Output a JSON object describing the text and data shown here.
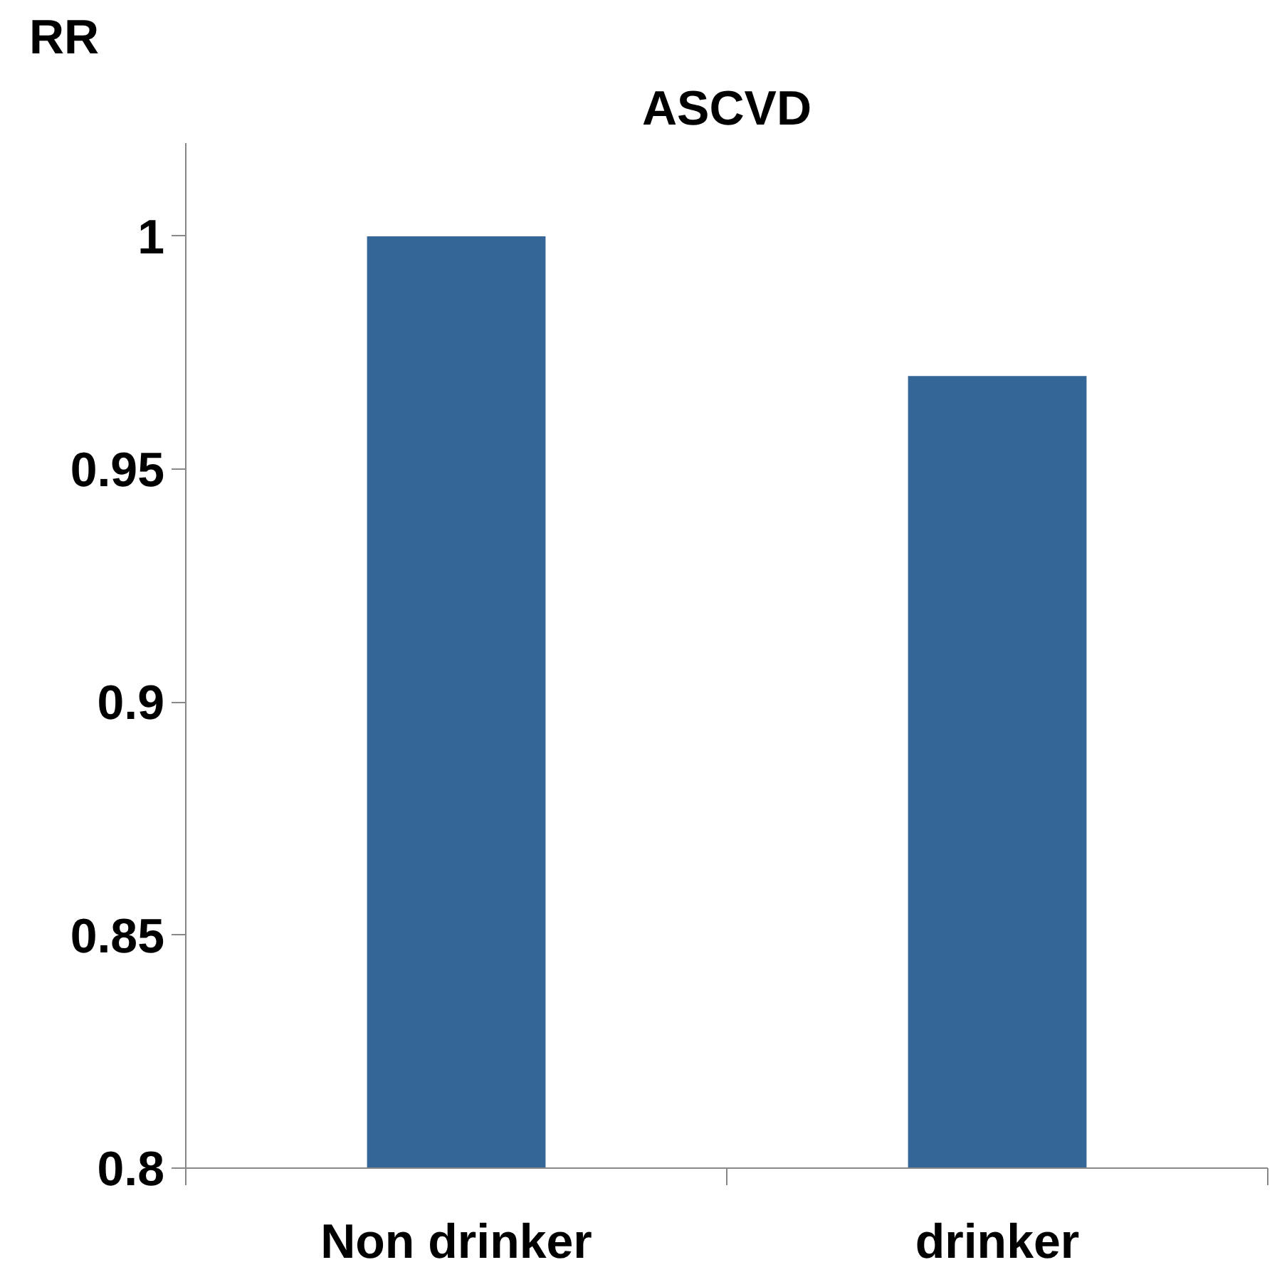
{
  "chart_data": {
    "type": "bar",
    "title": "ASCVD",
    "ylabel": "RR",
    "categories": [
      "Non drinker",
      "drinker"
    ],
    "values": [
      1,
      0.97
    ],
    "color": "#356698",
    "ylim": [
      0.8,
      1.02
    ],
    "yticks": [
      0.8,
      0.85,
      0.9,
      0.95,
      1
    ],
    "grid": false
  }
}
